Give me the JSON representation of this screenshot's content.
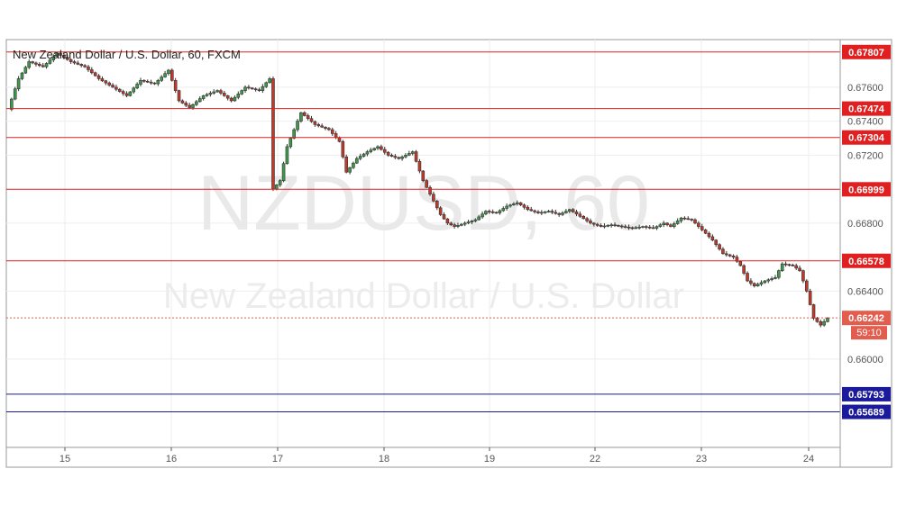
{
  "header": {
    "title": "New Zealand Dollar / U.S. Dollar, 60, FXCM"
  },
  "watermark": {
    "symbol": "NZDUSD, 60",
    "name": "New Zealand Dollar / U.S. Dollar"
  },
  "countdown": "59:10",
  "colors": {
    "up": "#3d9a4a",
    "down": "#c0392b",
    "resistance": "#e02020",
    "support": "#1a1a9a",
    "current": "#e35d4e",
    "grid": "#eeeeee",
    "axis": "#555555"
  },
  "chart_data": {
    "type": "candlestick",
    "timeframe": "60",
    "ylim": [
      0.6548,
      0.6788
    ],
    "y_ticks": [
      "0.67600",
      "0.67400",
      "0.67200",
      "0.66800",
      "0.66400",
      "0.66000"
    ],
    "x_ticks": [
      "15",
      "16",
      "17",
      "18",
      "19",
      "22",
      "23",
      "24"
    ],
    "levels": [
      {
        "label": "0.67807",
        "value": 0.67807,
        "kind": "resistance"
      },
      {
        "label": "0.67474",
        "value": 0.67474,
        "kind": "resistance"
      },
      {
        "label": "0.67304",
        "value": 0.67304,
        "kind": "resistance"
      },
      {
        "label": "0.66999",
        "value": 0.66999,
        "kind": "resistance"
      },
      {
        "label": "0.66578",
        "value": 0.66578,
        "kind": "resistance"
      },
      {
        "label": "0.65793",
        "value": 0.65793,
        "kind": "support"
      },
      {
        "label": "0.65689",
        "value": 0.65689,
        "kind": "support"
      }
    ],
    "current_price": {
      "label": "0.66242",
      "value": 0.66242
    },
    "price_path": [
      [
        0,
        0.6747
      ],
      [
        3,
        0.6765
      ],
      [
        6,
        0.6775
      ],
      [
        10,
        0.6772
      ],
      [
        14,
        0.678
      ],
      [
        18,
        0.6775
      ],
      [
        22,
        0.6772
      ],
      [
        26,
        0.6765
      ],
      [
        30,
        0.676
      ],
      [
        34,
        0.6755
      ],
      [
        38,
        0.6764
      ],
      [
        42,
        0.6762
      ],
      [
        46,
        0.677
      ],
      [
        49,
        0.6752
      ],
      [
        52,
        0.6748
      ],
      [
        56,
        0.6755
      ],
      [
        60,
        0.6758
      ],
      [
        64,
        0.6752
      ],
      [
        68,
        0.676
      ],
      [
        72,
        0.6758
      ],
      [
        75,
        0.6765
      ],
      [
        76,
        0.67
      ],
      [
        78,
        0.6705
      ],
      [
        80,
        0.6725
      ],
      [
        82,
        0.6735
      ],
      [
        84,
        0.6745
      ],
      [
        88,
        0.6738
      ],
      [
        92,
        0.6735
      ],
      [
        95,
        0.6728
      ],
      [
        97,
        0.671
      ],
      [
        100,
        0.6718
      ],
      [
        103,
        0.6722
      ],
      [
        106,
        0.6725
      ],
      [
        109,
        0.672
      ],
      [
        112,
        0.6718
      ],
      [
        116,
        0.6722
      ],
      [
        119,
        0.6705
      ],
      [
        122,
        0.6693
      ],
      [
        124,
        0.6685
      ],
      [
        126,
        0.668
      ],
      [
        128,
        0.6678
      ],
      [
        131,
        0.668
      ],
      [
        134,
        0.6682
      ],
      [
        137,
        0.6687
      ],
      [
        140,
        0.6686
      ],
      [
        143,
        0.669
      ],
      [
        146,
        0.6692
      ],
      [
        149,
        0.6688
      ],
      [
        152,
        0.6686
      ],
      [
        155,
        0.6687
      ],
      [
        158,
        0.6685
      ],
      [
        161,
        0.6688
      ],
      [
        164,
        0.6684
      ],
      [
        167,
        0.668
      ],
      [
        170,
        0.6678
      ],
      [
        173,
        0.6679
      ],
      [
        176,
        0.6678
      ],
      [
        179,
        0.6677
      ],
      [
        182,
        0.6678
      ],
      [
        185,
        0.6677
      ],
      [
        188,
        0.668
      ],
      [
        190,
        0.6678
      ],
      [
        193,
        0.6683
      ],
      [
        196,
        0.6682
      ],
      [
        199,
        0.6676
      ],
      [
        202,
        0.667
      ],
      [
        205,
        0.6662
      ],
      [
        208,
        0.666
      ],
      [
        210,
        0.6655
      ],
      [
        212,
        0.6646
      ],
      [
        214,
        0.6643
      ],
      [
        217,
        0.6646
      ],
      [
        220,
        0.6648
      ],
      [
        222,
        0.6656
      ],
      [
        225,
        0.6655
      ],
      [
        227,
        0.6652
      ],
      [
        229,
        0.664
      ],
      [
        231,
        0.6624
      ],
      [
        233,
        0.662
      ],
      [
        235,
        0.6624
      ]
    ]
  }
}
